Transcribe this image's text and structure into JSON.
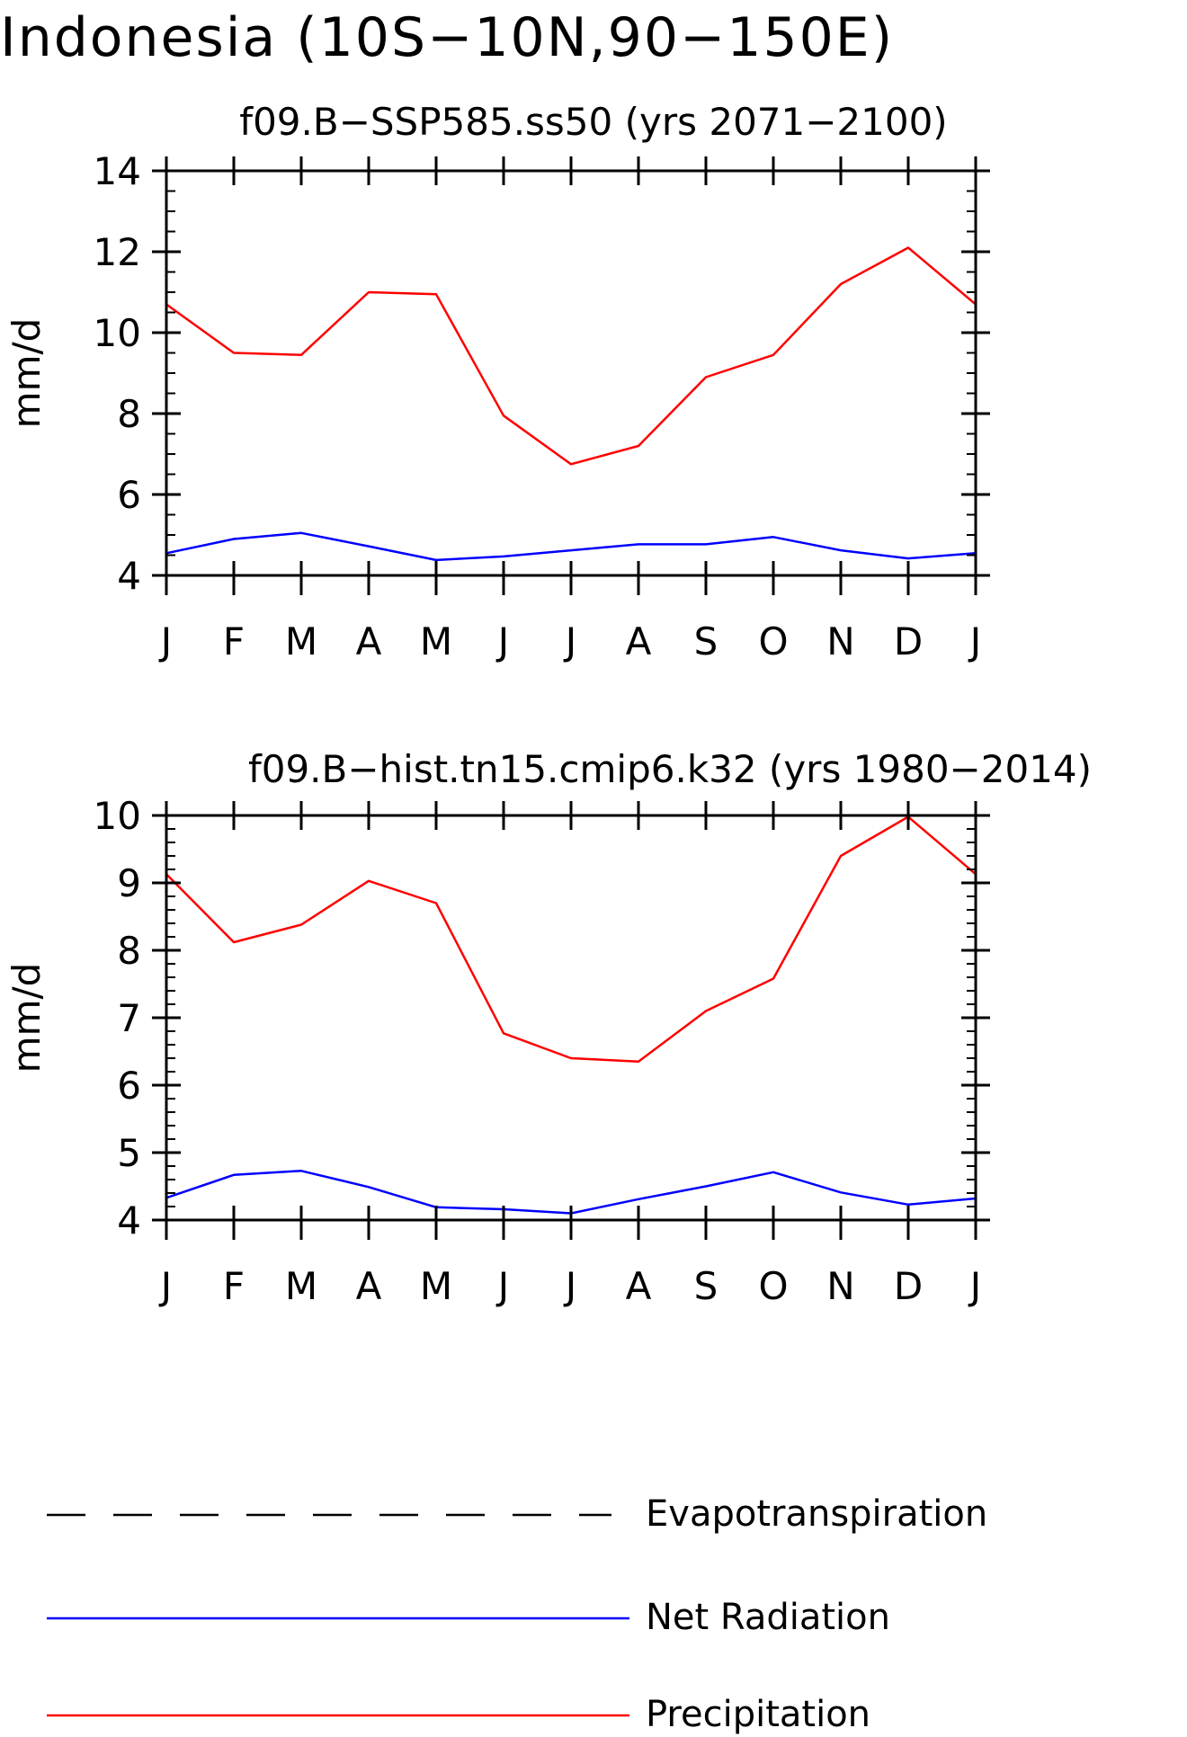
{
  "title": "Indonesia (10S−10N,90−150E)",
  "chart_data": [
    {
      "type": "line",
      "title": "f09.B−SSP585.ss50 (yrs 2071−2100)",
      "xlabel": "",
      "ylabel": "mm/d",
      "categories": [
        "J",
        "F",
        "M",
        "A",
        "M",
        "J",
        "J",
        "A",
        "S",
        "O",
        "N",
        "D",
        "J"
      ],
      "ylim": [
        4,
        14
      ],
      "yticks": [
        4,
        6,
        8,
        10,
        12,
        14
      ],
      "minor_step": 0.5,
      "series": [
        {
          "name": "Precipitation",
          "color": "#ff0000",
          "values": [
            10.7,
            9.5,
            9.45,
            11.0,
            10.95,
            7.95,
            6.75,
            7.2,
            8.9,
            9.45,
            11.2,
            12.1,
            10.7
          ]
        },
        {
          "name": "Net Radiation",
          "color": "#0000ff",
          "values": [
            4.55,
            4.9,
            5.05,
            4.72,
            4.38,
            4.47,
            4.62,
            4.77,
            4.77,
            4.95,
            4.62,
            4.42,
            4.55
          ]
        }
      ]
    },
    {
      "type": "line",
      "title": "f09.B−hist.tn15.cmip6.k32 (yrs 1980−2014)",
      "xlabel": "",
      "ylabel": "mm/d",
      "categories": [
        "J",
        "F",
        "M",
        "A",
        "M",
        "J",
        "J",
        "A",
        "S",
        "O",
        "N",
        "D",
        "J"
      ],
      "ylim": [
        4,
        10
      ],
      "yticks": [
        4,
        5,
        6,
        7,
        8,
        9,
        10
      ],
      "minor_step": 0.2,
      "series": [
        {
          "name": "Precipitation",
          "color": "#ff0000",
          "values": [
            9.13,
            8.12,
            8.38,
            9.03,
            8.7,
            6.77,
            6.4,
            6.35,
            7.1,
            7.58,
            9.4,
            9.98,
            9.13
          ]
        },
        {
          "name": "Net Radiation",
          "color": "#0000ff",
          "values": [
            4.33,
            4.67,
            4.73,
            4.49,
            4.19,
            4.16,
            4.1,
            4.31,
            4.5,
            4.71,
            4.41,
            4.23,
            4.32
          ]
        }
      ]
    }
  ],
  "legend": [
    {
      "label": "Evapotranspiration",
      "color": "#000000",
      "style": "dashed"
    },
    {
      "label": "Net Radiation",
      "color": "#0000ff",
      "style": "solid"
    },
    {
      "label": "Precipitation",
      "color": "#ff0000",
      "style": "solid"
    }
  ]
}
